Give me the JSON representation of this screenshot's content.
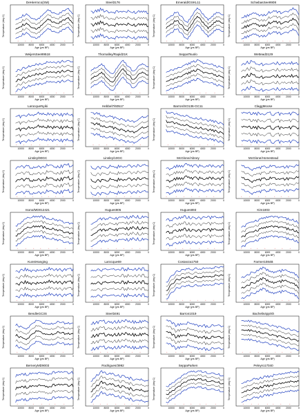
{
  "figure": {
    "ylabel": "Temperature (deg C)",
    "xlabel": "Age (yrs BP)",
    "x_ticks": [
      10000,
      8000,
      6000,
      4000,
      2000,
      0
    ],
    "colors": {
      "mean": "#000000",
      "band": "#1f3fbf",
      "sample": "#e06a6a"
    }
  },
  "chart_data": [
    {
      "type": "line",
      "title": "DeHierroco(SM)",
      "x": [
        11000,
        9000,
        7000,
        5000,
        3000,
        1000,
        0
      ],
      "series": [
        {
          "values": [
            14,
            15,
            13.5,
            16,
            15,
            16.5,
            15
          ]
        }
      ]
    },
    {
      "type": "line",
      "title": "Steel3176",
      "x": [
        11000,
        9000,
        7000,
        5000,
        3000,
        1000,
        0
      ],
      "series": [
        {
          "values": [
            12,
            12.5,
            12,
            12.2,
            12,
            12.3,
            12
          ]
        }
      ]
    },
    {
      "type": "line",
      "title": "Emerald/GSKL11",
      "x": [
        11000,
        9000,
        7000,
        5000,
        3000,
        1000,
        0
      ],
      "series": [
        {
          "values": [
            13,
            15,
            12,
            16,
            13,
            15,
            14
          ]
        }
      ]
    },
    {
      "type": "line",
      "title": "SchwbasSee9908",
      "x": [
        11000,
        9000,
        7000,
        5000,
        3000,
        1000,
        0
      ],
      "series": [
        {
          "values": [
            13,
            14,
            13.5,
            14.5,
            14,
            15,
            14
          ]
        }
      ]
    },
    {
      "type": "line",
      "title": "WeijersSee99518",
      "x": [
        11000,
        9000,
        7000,
        5000,
        3000,
        1000,
        0
      ],
      "series": [
        {
          "values": [
            12,
            13,
            13.5,
            14,
            14,
            14.5,
            14
          ]
        }
      ]
    },
    {
      "type": "line",
      "title": "Thornalley/Rapid21K",
      "x": [
        11000,
        9000,
        7000,
        5000,
        3000,
        1000,
        0
      ],
      "series": [
        {
          "values": [
            12,
            14,
            11,
            15,
            12,
            14,
            13
          ]
        }
      ]
    },
    {
      "type": "line",
      "title": "SeppaTsuolo",
      "x": [
        11000,
        9000,
        7000,
        5000,
        3000,
        1000,
        0
      ],
      "series": [
        {
          "values": [
            11,
            12,
            13,
            14,
            13,
            12.5,
            12
          ]
        }
      ]
    },
    {
      "type": "line",
      "title": "Wettead3129",
      "x": [
        11000,
        9000,
        7000,
        5000,
        3000,
        1000,
        0
      ],
      "series": [
        {
          "values": [
            12,
            12.5,
            12,
            12.3,
            12,
            12.2,
            12
          ]
        }
      ]
    },
    {
      "type": "line",
      "title": "LarocqueNyiki",
      "x": [
        11000,
        9000,
        7000,
        5000,
        3000,
        1000,
        0
      ],
      "series": [
        {
          "values": [
            12,
            12,
            12.5,
            12.4,
            12.2,
            12.3,
            12
          ]
        }
      ]
    },
    {
      "type": "line",
      "title": "Hebbel7/60517",
      "x": [
        11000,
        9000,
        7000,
        5000,
        3000,
        1000,
        0
      ],
      "series": [
        {
          "values": [
            13,
            12.5,
            12,
            11.5,
            11,
            12,
            12.5
          ]
        }
      ]
    },
    {
      "type": "line",
      "title": "Barron/SO136-GC11",
      "x": [
        11000,
        9000,
        7000,
        5000,
        3000,
        1000,
        0
      ],
      "series": [
        {
          "values": [
            14,
            13.5,
            13,
            12.5,
            12,
            11.5,
            11
          ]
        }
      ]
    },
    {
      "type": "line",
      "title": "ClaggMoose",
      "x": [
        11000,
        9000,
        7000,
        5000,
        3000,
        1000,
        0
      ],
      "series": [
        {
          "values": [
            12,
            12,
            12,
            12,
            12,
            12,
            12
          ]
        }
      ]
    },
    {
      "type": "line",
      "title": "Linsley/90GC",
      "x": [
        11000,
        9000,
        7000,
        5000,
        3000,
        1000,
        0
      ],
      "series": [
        {
          "values": [
            12,
            12.3,
            12.1,
            12.4,
            12.2,
            12.5,
            12.3
          ]
        }
      ]
    },
    {
      "type": "line",
      "title": "Linsley/10GC",
      "x": [
        11000,
        9000,
        7000,
        5000,
        3000,
        1000,
        0
      ],
      "series": [
        {
          "values": [
            12,
            12,
            12.2,
            12.1,
            12.3,
            12.2,
            12.4
          ]
        }
      ]
    },
    {
      "type": "line",
      "title": "McGlone/Abney",
      "x": [
        11000,
        9000,
        7000,
        5000,
        3000,
        1000,
        0
      ],
      "series": [
        {
          "values": [
            12,
            12.5,
            12.8,
            12.6,
            12.7,
            12.5,
            12.6
          ]
        }
      ]
    },
    {
      "type": "line",
      "title": "McGlone/Homestead",
      "x": [
        11000,
        9000,
        7000,
        5000,
        3000,
        1000,
        0
      ],
      "series": [
        {
          "values": [
            12,
            11,
            11.5,
            11.8,
            11.6,
            11.7,
            11.8
          ]
        }
      ]
    },
    {
      "type": "line",
      "title": "Isono/MD012421",
      "x": [
        11000,
        9000,
        7000,
        5000,
        3000,
        1000,
        0
      ],
      "series": [
        {
          "values": [
            12,
            14,
            14.5,
            14,
            13.5,
            13,
            12.5
          ]
        }
      ]
    },
    {
      "type": "line",
      "title": "Hugues905",
      "x": [
        11000,
        9000,
        7000,
        5000,
        3000,
        1000,
        0
      ],
      "series": [
        {
          "values": [
            11,
            12,
            12.2,
            12.1,
            12.5,
            12.3,
            12.2
          ]
        }
      ]
    },
    {
      "type": "line",
      "title": "Hugues893",
      "x": [
        11000,
        9000,
        7000,
        5000,
        3000,
        1000,
        0
      ],
      "series": [
        {
          "values": [
            12,
            12.5,
            12.7,
            12.4,
            12.6,
            12.5,
            12.6
          ]
        }
      ]
    },
    {
      "type": "line",
      "title": "Kim1803",
      "x": [
        11000,
        9000,
        7000,
        5000,
        3000,
        1000,
        0
      ],
      "series": [
        {
          "values": [
            12,
            13,
            14,
            14.5,
            14,
            13.5,
            13
          ]
        }
      ]
    },
    {
      "type": "line",
      "title": "KunstHanging",
      "x": [
        11000,
        9000,
        7000,
        5000,
        3000,
        1000,
        0
      ],
      "series": [
        {
          "values": [
            12,
            12.5,
            12.2,
            12.6,
            12.4,
            12.5,
            12.4
          ]
        }
      ]
    },
    {
      "type": "line",
      "title": "Larocque69",
      "x": [
        11000,
        9000,
        7000,
        5000,
        3000,
        1000,
        0
      ],
      "series": [
        {
          "values": [
            12,
            12.3,
            12.2,
            12.4,
            12.3,
            12.4,
            12.3
          ]
        }
      ]
    },
    {
      "type": "line",
      "title": "Costanza1750",
      "x": [
        11000,
        9000,
        7000,
        5000,
        3000,
        1000,
        0
      ],
      "series": [
        {
          "values": [
            10,
            13,
            13.5,
            13.6,
            13.8,
            14,
            14
          ]
        }
      ]
    },
    {
      "type": "line",
      "title": "Farmer1084B",
      "x": [
        11000,
        9000,
        7000,
        5000,
        3000,
        1000,
        0
      ],
      "series": [
        {
          "values": [
            12,
            13,
            14,
            13,
            13.5,
            13,
            12
          ]
        }
      ]
    },
    {
      "type": "line",
      "title": "BendleGC3S",
      "x": [
        11000,
        9000,
        7000,
        5000,
        3000,
        1000,
        0
      ],
      "series": [
        {
          "values": [
            12,
            11,
            13,
            12,
            12.5,
            12.3,
            12.4
          ]
        }
      ]
    },
    {
      "type": "line",
      "title": "Steel3491",
      "x": [
        11000,
        9000,
        7000,
        5000,
        3000,
        1000,
        0
      ],
      "series": [
        {
          "values": [
            12,
            12.4,
            12.2,
            12.5,
            12.3,
            12.4,
            12.3
          ]
        }
      ]
    },
    {
      "type": "line",
      "title": "Barron1019",
      "x": [
        11000,
        9000,
        7000,
        5000,
        3000,
        1000,
        0
      ],
      "series": [
        {
          "values": [
            14,
            13,
            13.5,
            13,
            12.8,
            13,
            12.7
          ]
        }
      ]
    },
    {
      "type": "line",
      "title": "Bachelis4pp/sh",
      "x": [
        11000,
        9000,
        7000,
        5000,
        3000,
        1000,
        0
      ],
      "series": [
        {
          "values": [
            14,
            13.5,
            13,
            12.5,
            12,
            11.5,
            11
          ]
        }
      ]
    },
    {
      "type": "line",
      "title": "BerneryMD9003",
      "x": [
        11000,
        9000,
        7000,
        5000,
        3000,
        1000,
        0
      ],
      "series": [
        {
          "values": [
            12,
            12.3,
            12.5,
            12.4,
            12.6,
            12.5,
            12.6
          ]
        }
      ]
    },
    {
      "type": "line",
      "title": "Rodrigues/3992",
      "x": [
        11000,
        9000,
        7000,
        5000,
        3000,
        1000,
        0
      ],
      "series": [
        {
          "values": [
            12,
            14,
            13.5,
            13,
            12.5,
            12.3,
            12
          ]
        }
      ]
    },
    {
      "type": "line",
      "title": "SeppaParken",
      "x": [
        11000,
        9000,
        7000,
        5000,
        3000,
        1000,
        0
      ],
      "series": [
        {
          "values": [
            10,
            12,
            14,
            14.5,
            14,
            13.5,
            13
          ]
        }
      ]
    },
    {
      "type": "line",
      "title": "Peleyro17040",
      "x": [
        11000,
        9000,
        7000,
        5000,
        3000,
        1000,
        0
      ],
      "series": [
        {
          "values": [
            11,
            12,
            12.5,
            13,
            13.5,
            13.8,
            14
          ]
        }
      ]
    }
  ]
}
